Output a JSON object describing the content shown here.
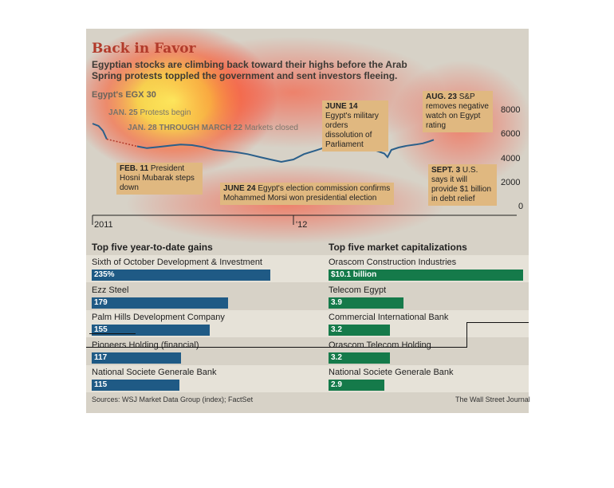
{
  "header": {
    "title": "Back in Favor",
    "subtitle": "Egyptian stocks are climbing back toward their highs before the Arab Spring protests toppled the government and sent investors fleeing.",
    "index_label": "Egypt's EGX 30"
  },
  "annotations": {
    "jan25": {
      "date": "JAN. 25",
      "text": "Protests begin"
    },
    "jan28": {
      "date": "JAN. 28 THROUGH MARCH 22",
      "text": "Markets closed"
    },
    "feb11": {
      "date": "FEB. 11",
      "text": "President Hosni Mubarak steps down"
    },
    "jun14": {
      "date": "JUNE 14",
      "text": "Egypt's military orders dissolution of Parliament"
    },
    "jun24": {
      "date": "JUNE 24",
      "text": "Egypt's election commission confirms Mohammed Morsi won presidential election"
    },
    "aug23": {
      "date": "AUG. 23",
      "text": "S&P removes negative watch on Egypt rating"
    },
    "sep3": {
      "date": "SEPT. 3",
      "text": "U.S. says it will provide $1 billion in debt relief"
    }
  },
  "footer": {
    "source": "Sources: WSJ Market Data Group (index); FactSet",
    "publisher": "The Wall Street Journal"
  },
  "colors": {
    "panel": "#d7d2c7",
    "line": "#2a5f8a",
    "gains_bar": "#1f5a85",
    "caps_bar": "#157a4a",
    "annotation_box": "#e0b880",
    "title": "#b23a2a"
  },
  "chart_data": [
    {
      "type": "line",
      "title": "",
      "series": [
        {
          "name": "Egypt's EGX 30",
          "x": [
            "2011-01-01",
            "2011-01-12",
            "2011-01-20",
            "2011-01-27",
            "2011-03-23",
            "2011-04-10",
            "2011-05-01",
            "2011-05-20",
            "2011-06-10",
            "2011-07-01",
            "2011-07-20",
            "2011-08-10",
            "2011-09-01",
            "2011-09-20",
            "2011-10-10",
            "2011-11-01",
            "2011-11-20",
            "2011-12-10",
            "2012-01-01",
            "2012-01-20",
            "2012-02-10",
            "2012-03-01",
            "2012-03-20",
            "2012-04-10",
            "2012-05-01",
            "2012-05-20",
            "2012-06-05",
            "2012-06-14",
            "2012-06-20",
            "2012-06-27",
            "2012-07-10",
            "2012-07-25",
            "2012-08-10",
            "2012-08-23",
            "2012-09-03",
            "2012-09-12"
          ],
          "y": [
            7000,
            6800,
            6400,
            5700,
            5100,
            4950,
            5050,
            5150,
            5250,
            5200,
            5050,
            4800,
            4700,
            4600,
            4450,
            4200,
            4000,
            3800,
            4000,
            4450,
            4750,
            5050,
            5150,
            5050,
            5000,
            4900,
            4650,
            4500,
            4200,
            4800,
            5000,
            5150,
            5250,
            5350,
            5500,
            5650
          ]
        }
      ],
      "ylim": [
        0,
        8000
      ],
      "yticks": [
        0,
        2000,
        4000,
        6000,
        8000
      ],
      "xticks": [
        "2011",
        "'12"
      ],
      "grid": false
    },
    {
      "type": "bar",
      "title": "Top five year-to-date gains",
      "categories": [
        "Sixth of October Development & Investment",
        "Ezz Steel",
        "Palm Hills Development Company",
        "Pioneers Holding (financial)",
        "National Societe Generale Bank"
      ],
      "values": [
        235,
        179,
        155,
        117,
        115
      ],
      "value_labels": [
        "235%",
        "179",
        "155",
        "117",
        "115"
      ]
    },
    {
      "type": "bar",
      "title": "Top five market capitalizations",
      "categories": [
        "Orascom Construction Industries",
        "Telecom Egypt",
        "Commercial International Bank",
        "Orascom Telecom Holding",
        "National Societe Generale Bank"
      ],
      "values": [
        10.1,
        3.9,
        3.2,
        3.2,
        2.9
      ],
      "value_labels": [
        "$10.1 billion",
        "3.9",
        "3.2",
        "3.2",
        "2.9"
      ]
    }
  ]
}
